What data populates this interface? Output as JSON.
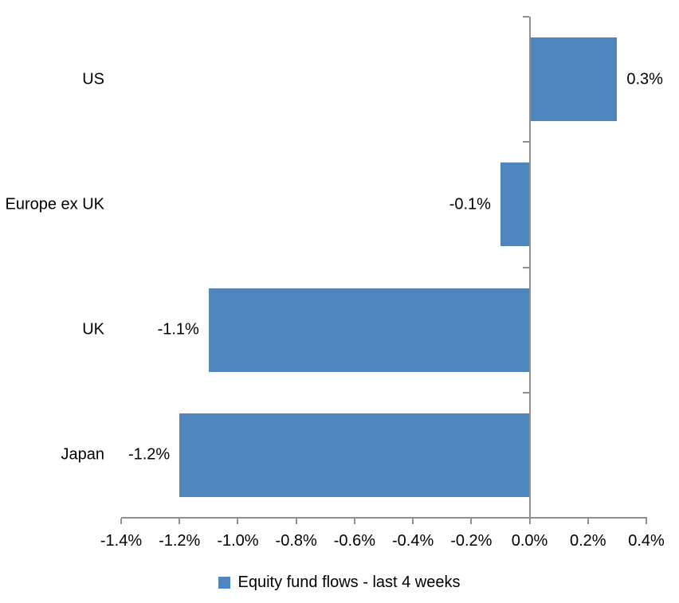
{
  "chart_data": {
    "type": "bar",
    "orientation": "horizontal",
    "title": "",
    "xlabel": "",
    "ylabel": "",
    "categories": [
      "US",
      "Europe ex UK",
      "UK",
      "Japan"
    ],
    "series": [
      {
        "name": "Equity fund flows - last 4 weeks",
        "values": [
          0.3,
          -0.1,
          -1.1,
          -1.2
        ],
        "data_labels": [
          "0.3%",
          "-0.1%",
          "-1.1%",
          "-1.2%"
        ]
      }
    ],
    "x_axis": {
      "min": -1.4,
      "max": 0.4,
      "tick_step": 0.2,
      "tick_labels": [
        "-1.4%",
        "-1.2%",
        "-1.0%",
        "-0.8%",
        "-0.6%",
        "-0.4%",
        "-0.2%",
        "0.0%",
        "0.2%",
        "0.4%"
      ]
    },
    "grid": false,
    "legend_position": "bottom",
    "bar_color": "#4E86BD",
    "axis_color": "#8F8F8F",
    "text_color": "#000000",
    "background": "#FFFFFF"
  }
}
